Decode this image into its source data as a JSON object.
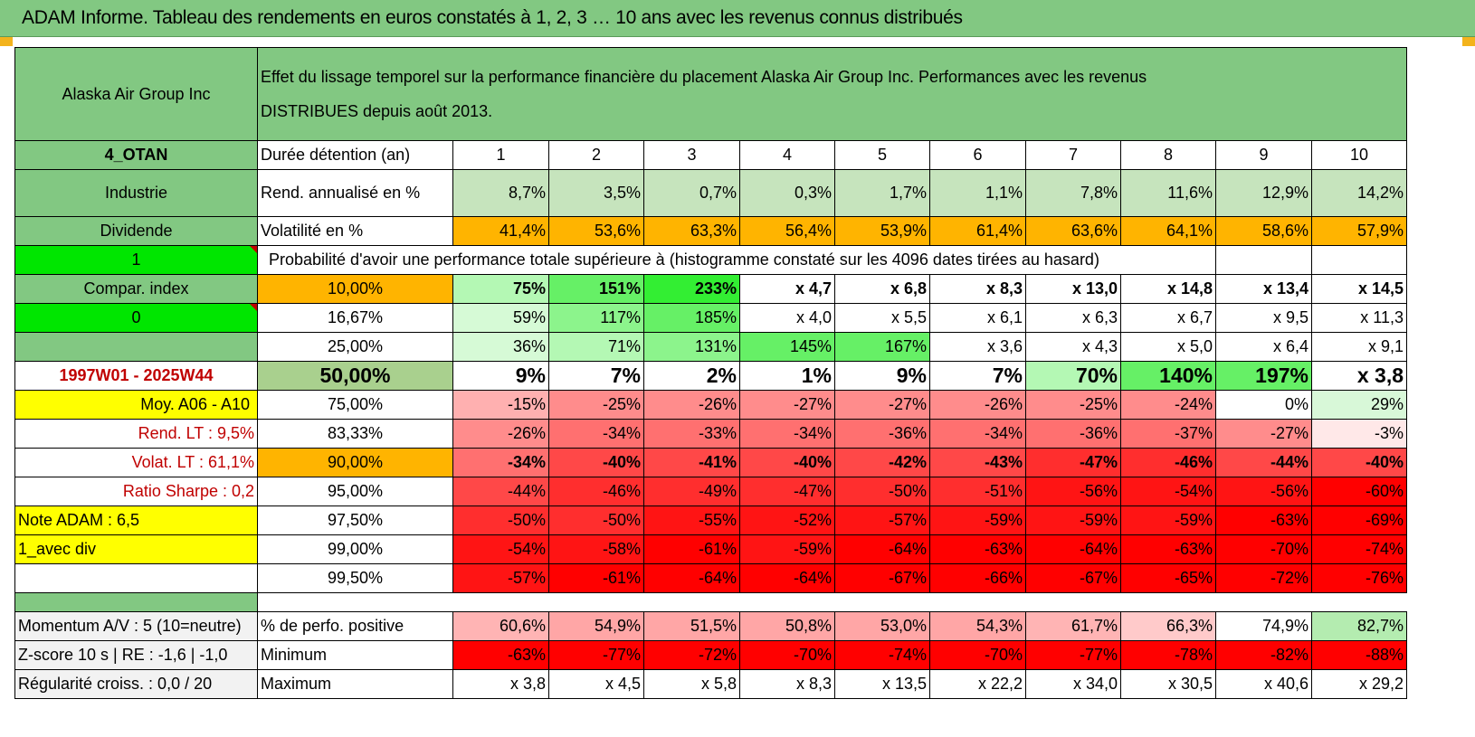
{
  "title": "ADAM Informe. Tableau des rendements en euros constatés à 1, 2, 3 … 10 ans avec les revenus connus distribués",
  "header": {
    "asset": "Alaska Air Group Inc",
    "description_line1": "Effet du lissage temporel sur la performance financière du placement Alaska Air Group Inc. Performances avec les revenus",
    "description_line2": "DISTRIBUES depuis août 2013."
  },
  "left_labels": {
    "code": "4_OTAN",
    "sector": "Industrie",
    "income_type": "Dividende",
    "flag1": "1",
    "compar": "Compar. index",
    "flag2": "0",
    "period": "1997W01 - 2025W44",
    "moy": "Moy. A06 - A10",
    "rend_lt": "Rend. LT :    9,5%",
    "volat_lt": "Volat. LT :    61,1%",
    "sharpe": "Ratio Sharpe :    0,2",
    "note": "Note ADAM : 6,5",
    "mode": "1_avec div"
  },
  "table": {
    "holding_label": "Durée détention (an)",
    "years": [
      "1",
      "2",
      "3",
      "4",
      "5",
      "6",
      "7",
      "8",
      "9",
      "10"
    ],
    "return_label": "Rend. annualisé en %",
    "returns": [
      "8,7%",
      "3,5%",
      "0,7%",
      "0,3%",
      "1,7%",
      "1,1%",
      "7,8%",
      "11,6%",
      "12,9%",
      "14,2%"
    ],
    "vol_label": "Volatilité en %",
    "vols": [
      "41,4%",
      "53,6%",
      "63,3%",
      "56,4%",
      "53,9%",
      "61,4%",
      "63,6%",
      "64,1%",
      "58,6%",
      "57,9%"
    ],
    "proba_label": "Probabilité d'avoir une performance totale supérieure à (histogramme constaté sur les 4096 dates tirées au hasard)",
    "quantiles": [
      {
        "p": "10,00%",
        "v": [
          "75%",
          "151%",
          "233%",
          "x 4,7",
          "x 6,8",
          "x 8,3",
          "x 13,0",
          "x 14,8",
          "x 13,4",
          "x 14,5"
        ]
      },
      {
        "p": "16,67%",
        "v": [
          "59%",
          "117%",
          "185%",
          "x 4,0",
          "x 5,5",
          "x 6,1",
          "x 6,3",
          "x 6,7",
          "x 9,5",
          "x 11,3"
        ]
      },
      {
        "p": "25,00%",
        "v": [
          "36%",
          "71%",
          "131%",
          "145%",
          "167%",
          "x 3,6",
          "x 4,3",
          "x 5,0",
          "x 6,4",
          "x 9,1"
        ]
      },
      {
        "p": "50,00%",
        "v": [
          "9%",
          "7%",
          "2%",
          "1%",
          "9%",
          "7%",
          "70%",
          "140%",
          "197%",
          "x 3,8"
        ]
      },
      {
        "p": "75,00%",
        "v": [
          "-15%",
          "-25%",
          "-26%",
          "-27%",
          "-27%",
          "-26%",
          "-25%",
          "-24%",
          "0%",
          "29%"
        ]
      },
      {
        "p": "83,33%",
        "v": [
          "-26%",
          "-34%",
          "-33%",
          "-34%",
          "-36%",
          "-34%",
          "-36%",
          "-37%",
          "-27%",
          "-3%"
        ]
      },
      {
        "p": "90,00%",
        "v": [
          "-34%",
          "-40%",
          "-41%",
          "-40%",
          "-42%",
          "-43%",
          "-47%",
          "-46%",
          "-44%",
          "-40%"
        ]
      },
      {
        "p": "95,00%",
        "v": [
          "-44%",
          "-46%",
          "-49%",
          "-47%",
          "-50%",
          "-51%",
          "-56%",
          "-54%",
          "-56%",
          "-60%"
        ]
      },
      {
        "p": "97,50%",
        "v": [
          "-50%",
          "-50%",
          "-55%",
          "-52%",
          "-57%",
          "-59%",
          "-59%",
          "-59%",
          "-63%",
          "-69%"
        ]
      },
      {
        "p": "99,00%",
        "v": [
          "-54%",
          "-58%",
          "-61%",
          "-59%",
          "-64%",
          "-63%",
          "-64%",
          "-63%",
          "-70%",
          "-74%"
        ]
      },
      {
        "p": "99,50%",
        "v": [
          "-57%",
          "-61%",
          "-64%",
          "-64%",
          "-67%",
          "-66%",
          "-67%",
          "-65%",
          "-72%",
          "-76%"
        ]
      }
    ],
    "momentum_label": "Momentum A/V : 5 (10=neutre)",
    "positive_label": "% de perfo. positive",
    "positive": [
      "60,6%",
      "54,9%",
      "51,5%",
      "50,8%",
      "53,0%",
      "54,3%",
      "61,7%",
      "66,3%",
      "74,9%",
      "82,7%"
    ],
    "zscore_label": "Z-score 10 s | RE : -1,6 | -1,0",
    "min_label": "Minimum",
    "minimum": [
      "-63%",
      "-77%",
      "-72%",
      "-70%",
      "-74%",
      "-70%",
      "-77%",
      "-78%",
      "-82%",
      "-88%"
    ],
    "regul_label": "Régularité croiss. : 0,0 / 20",
    "max_label": "Maximum",
    "maximum": [
      "x 3,8",
      "x 4,5",
      "x 5,8",
      "x 8,3",
      "x 13,5",
      "x 22,2",
      "x 34,0",
      "x 30,5",
      "x 40,6",
      "x 29,2"
    ]
  },
  "colors": {
    "header_green": "#82c882",
    "lime": "#00e600",
    "yellow": "#ffff00",
    "orange": "#ffb400",
    "label_red": "#c00000"
  }
}
